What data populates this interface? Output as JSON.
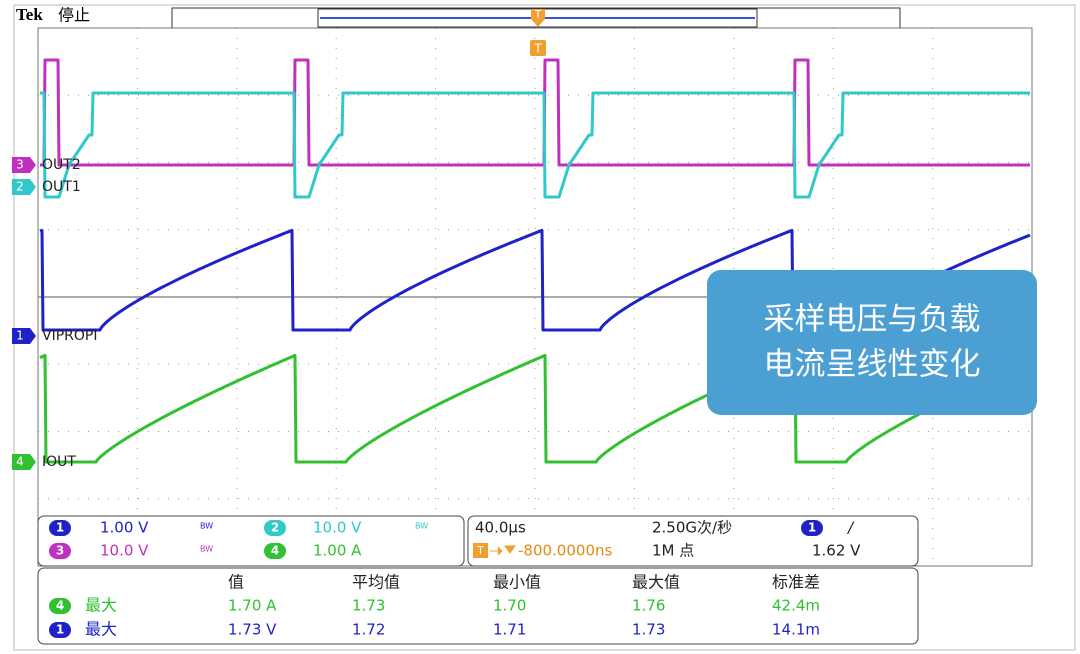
{
  "header": {
    "brand": "Tek",
    "status": "停止"
  },
  "traces": [
    {
      "channel": "3",
      "label": "OUT2"
    },
    {
      "channel": "2",
      "label": "OUT1"
    },
    {
      "channel": "1",
      "label": "VIPROPI"
    },
    {
      "channel": "4",
      "label": "IOUT"
    }
  ],
  "trigger_marker": "T",
  "callout": [
    "采样电压与负载",
    "电流呈线性变化"
  ],
  "vertical": [
    {
      "channel": "1",
      "scale": "1.00 V",
      "bw": "BW"
    },
    {
      "channel": "2",
      "scale": "10.0 V",
      "bw": "BW"
    },
    {
      "channel": "3",
      "scale": "10.0 V",
      "bw": "BW"
    },
    {
      "channel": "4",
      "scale": "1.00 A"
    }
  ],
  "horizontal": {
    "timebase": "40.0µs",
    "sample_rate": "2.50G次/秒",
    "trigger_icon": "T",
    "position": "-800.0000ns",
    "record": "1M 点",
    "trigger_channel": "1",
    "trigger_slope": "/",
    "trigger_level": "1.62 V"
  },
  "measurements": {
    "headers": [
      "值",
      "平均值",
      "最小值",
      "最大值",
      "标准差"
    ],
    "rows": [
      {
        "channel": "4",
        "label": "最大",
        "values": [
          "1.70 A",
          "1.73",
          "1.70",
          "1.76",
          "42.4m"
        ]
      },
      {
        "channel": "1",
        "label": "最大",
        "values": [
          "1.73 V",
          "1.72",
          "1.71",
          "1.73",
          "14.1m"
        ]
      }
    ]
  }
}
